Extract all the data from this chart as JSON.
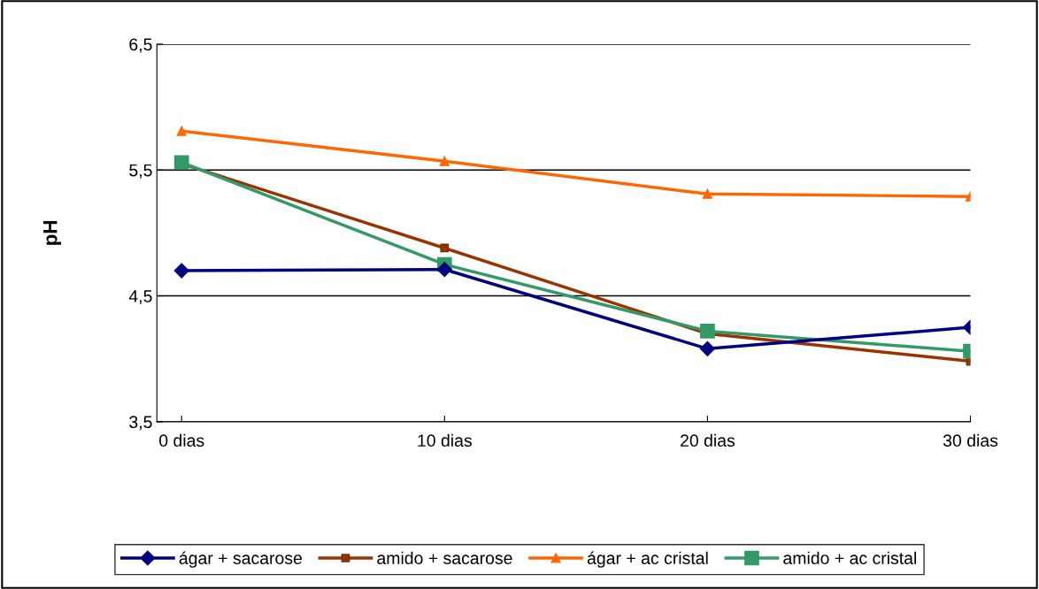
{
  "chart_data": {
    "type": "line",
    "ylabel": "pH",
    "categories": [
      "0 dias",
      "10 dias",
      "20 dias",
      "30 dias"
    ],
    "series": [
      {
        "name": "ágar + sacarose",
        "color": "#000080",
        "marker": "diamond",
        "values": [
          4.7,
          4.71,
          4.08,
          4.25
        ]
      },
      {
        "name": "amido + sacarose",
        "color": "#993300",
        "marker": "square",
        "values": [
          5.55,
          4.88,
          4.2,
          3.98
        ]
      },
      {
        "name": "ágar + ac cristal",
        "color": "#ff6600",
        "marker": "triangle",
        "values": [
          5.81,
          5.57,
          5.31,
          5.29
        ]
      },
      {
        "name": "amido + ac cristal",
        "color": "#339966",
        "marker": "square",
        "values": [
          5.56,
          4.75,
          4.22,
          4.06
        ]
      }
    ],
    "ylim": [
      3.5,
      6.5
    ],
    "yticks": [
      {
        "value": 3.5,
        "label": "3,5"
      },
      {
        "value": 4.5,
        "label": "4,5"
      },
      {
        "value": 5.5,
        "label": "5,5"
      },
      {
        "value": 6.5,
        "label": "6,5"
      }
    ],
    "grid": "y",
    "legend": "bottom"
  }
}
